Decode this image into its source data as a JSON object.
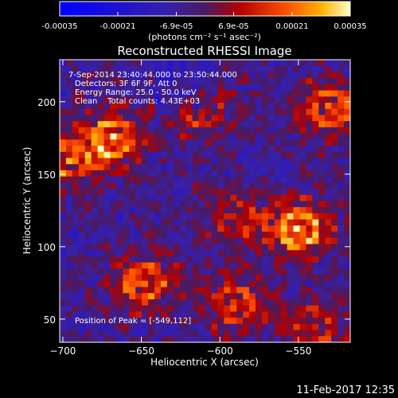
{
  "colorbar": {
    "ticks": [
      "-0.00035",
      "-0.00021",
      "-6.9e-05",
      "6.9e-05",
      "0.00021",
      "0.00035"
    ],
    "values": [
      -0.00035,
      -0.00021,
      -6.9e-05,
      6.9e-05,
      0.00021,
      0.00035
    ],
    "range": [
      -0.00035,
      0.00035
    ],
    "unit_label": "(photons cm⁻² s⁻¹ asec⁻²)"
  },
  "chart_data": {
    "type": "heatmap",
    "title": "Reconstructed RHESSI Image",
    "xlabel": "Heliocentric X (arcsec)",
    "ylabel": "Heliocentric Y (arcsec)",
    "xlim": [
      -702,
      -517
    ],
    "ylim": [
      34,
      229
    ],
    "xticks": [
      -700,
      -650,
      -600,
      -550
    ],
    "yticks": [
      50,
      100,
      150,
      200
    ],
    "annotations": [
      "7-Sep-2014 23:40:44.000 to 23:50:44.000",
      "Detectors: 3F 6F 9F, Att 0",
      "Energy Range: 25.0 - 50.0 keV",
      "Clean    Total counts: 4.43E+03"
    ],
    "peak_label": "Position of Peak = [-549,112]",
    "peak": [
      -549,
      112
    ],
    "bright_regions": [
      {
        "x": -550,
        "y": 112,
        "relative_intensity": 1.0
      },
      {
        "x": -668,
        "y": 175,
        "relative_intensity": 0.85
      },
      {
        "x": -695,
        "y": 160,
        "relative_intensity": 0.7
      },
      {
        "x": -648,
        "y": 75,
        "relative_intensity": 0.75
      },
      {
        "x": -530,
        "y": 195,
        "relative_intensity": 0.7
      },
      {
        "x": -590,
        "y": 60,
        "relative_intensity": 0.6
      },
      {
        "x": -540,
        "y": 45,
        "relative_intensity": 0.55
      },
      {
        "x": -610,
        "y": 195,
        "relative_intensity": 0.55
      },
      {
        "x": -590,
        "y": 120,
        "relative_intensity": 0.5
      }
    ]
  },
  "footer": {
    "date": "11-Feb-2017 12:35"
  }
}
